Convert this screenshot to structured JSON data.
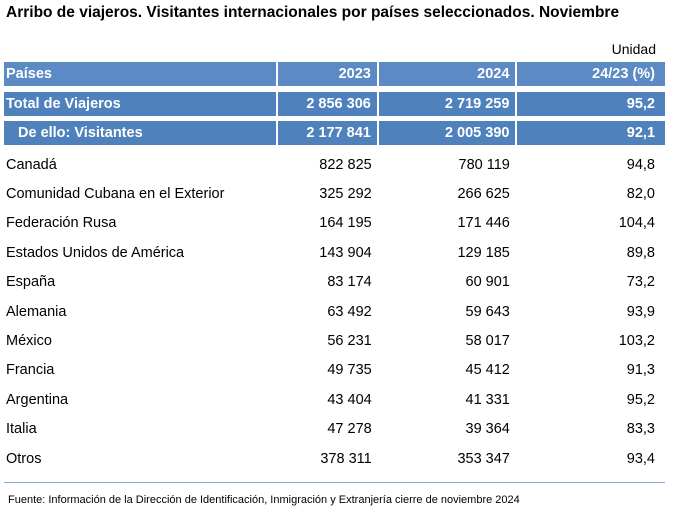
{
  "title": "Arribo de viajeros. Visitantes internacionales por países seleccionados. Noviembre",
  "unit": "Unidad",
  "header": {
    "col1": "Países",
    "col2": "2023",
    "col3": "2024",
    "col4": "24/23 (%)"
  },
  "total": {
    "label": "Total de Viajeros",
    "v2023": "2 856 306",
    "v2024": "2 719 259",
    "pct": "95,2"
  },
  "visitantes": {
    "label": "De ello: Visitantes",
    "v2023": "2 177 841",
    "v2024": "2 005 390",
    "pct": "92,1"
  },
  "rows": [
    {
      "label": "Canadá",
      "v2023": "822 825",
      "v2024": "780 119",
      "pct": "94,8"
    },
    {
      "label": "Comunidad Cubana en el Exterior",
      "v2023": "325 292",
      "v2024": "266 625",
      "pct": "82,0"
    },
    {
      "label": "Federación Rusa",
      "v2023": "164 195",
      "v2024": "171 446",
      "pct": "104,4"
    },
    {
      "label": "Estados Unidos de América",
      "v2023": "143 904",
      "v2024": "129 185",
      "pct": "89,8"
    },
    {
      "label": "España",
      "v2023": "83 174",
      "v2024": "60 901",
      "pct": "73,2"
    },
    {
      "label": "Alemania",
      "v2023": "63 492",
      "v2024": "59 643",
      "pct": "93,9"
    },
    {
      "label": "México",
      "v2023": "56 231",
      "v2024": "58 017",
      "pct": "103,2"
    },
    {
      "label": "Francia",
      "v2023": "49 735",
      "v2024": "45 412",
      "pct": "91,3"
    },
    {
      "label": "Argentina",
      "v2023": "43 404",
      "v2024": "41 331",
      "pct": "95,2"
    },
    {
      "label": "Italia",
      "v2023": "47 278",
      "v2024": "39 364",
      "pct": "83,3"
    },
    {
      "label": "Otros",
      "v2023": "378 311",
      "v2024": "353 347",
      "pct": "93,4"
    }
  ],
  "footer": "Fuente: Información de la Dirección  de  Identificación,  Inmigración  y Extranjería cierre de noviembre 2024",
  "colors": {
    "header_blue": "#5b8ac4",
    "row_blue": "#4f81bd",
    "rule": "#8ea9d6"
  }
}
